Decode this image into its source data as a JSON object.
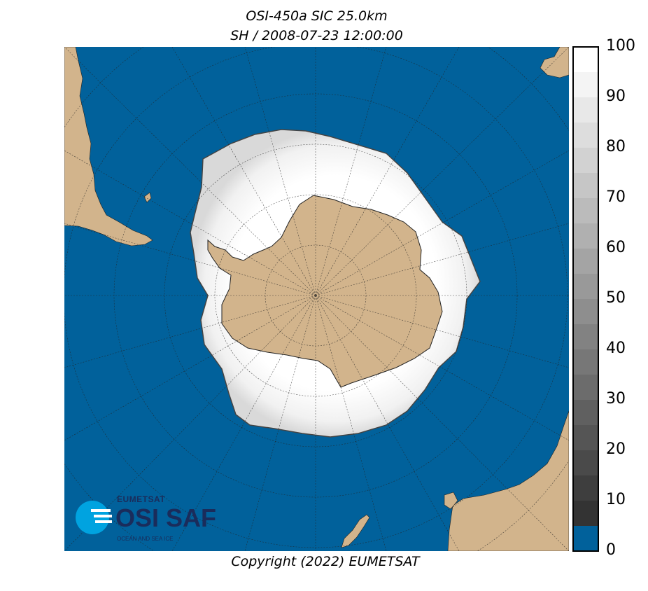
{
  "title": {
    "line1": "OSI-450a SIC 25.0km",
    "line2": "SH / 2008-07-23 12:00:00"
  },
  "colorbar": {
    "tick_labels": [
      "100",
      "90",
      "80",
      "70",
      "60",
      "50",
      "40",
      "30",
      "20",
      "10",
      "0"
    ],
    "ocean_color": "#01619b",
    "land_color": "#d2b48c"
  },
  "copyright": "Copyright (2022)  EUMETSAT",
  "logo": {
    "org": "EUMETSAT",
    "name": "OSI SAF",
    "subtitle": "OCEAN AND SEA ICE"
  }
}
